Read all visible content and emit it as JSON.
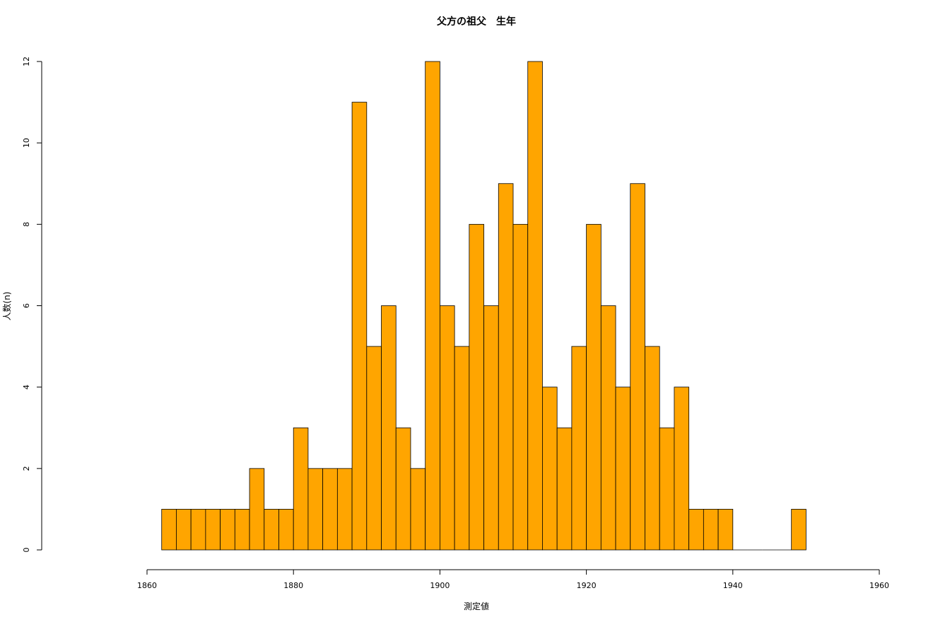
{
  "chart_data": {
    "type": "bar",
    "title": "父方の祖父　生年",
    "xlabel": "測定値",
    "ylabel": "人数(n)",
    "xlim": [
      1860,
      1960
    ],
    "ylim": [
      0,
      12
    ],
    "x_ticks": [
      1860,
      1880,
      1900,
      1920,
      1940,
      1960
    ],
    "y_ticks": [
      0,
      2,
      4,
      6,
      8,
      10,
      12
    ],
    "bin_start": 1862,
    "bin_width": 2,
    "values": [
      1,
      1,
      1,
      1,
      1,
      1,
      2,
      1,
      1,
      3,
      2,
      2,
      2,
      11,
      5,
      6,
      3,
      2,
      12,
      6,
      5,
      8,
      6,
      9,
      8,
      12,
      4,
      3,
      5,
      8,
      6,
      4,
      9,
      5,
      3,
      4,
      1,
      1,
      1,
      0,
      0,
      0,
      0,
      1
    ],
    "bar_color": "#FFA500",
    "border_color": "#000000",
    "grid": false,
    "legend": "none"
  }
}
